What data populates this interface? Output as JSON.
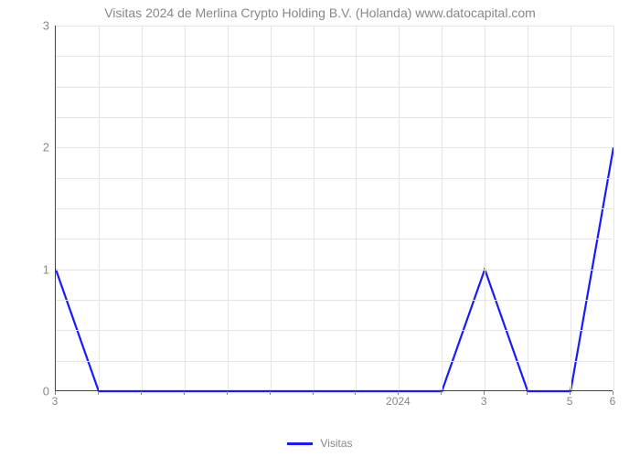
{
  "chart": {
    "type": "line",
    "title": "Visitas 2024 de Merlina Crypto Holding B.V. (Holanda) www.datocapital.com",
    "title_fontsize": 14,
    "title_color": "#888888",
    "background_color": "#ffffff",
    "grid_color": "#e5e5e5",
    "axis_color": "#444444",
    "tick_label_color": "#888888",
    "tick_label_fontsize": 13,
    "line_color": "#1a1aff",
    "line_width": 2.2,
    "ylim": [
      0,
      3
    ],
    "ytick_step": 1,
    "yticks": [
      0,
      1,
      2,
      3
    ],
    "x_count": 14,
    "x_major_every": 1,
    "hgrid_subdiv": 4,
    "xtick_labels": {
      "0": "3",
      "8": "2024",
      "10": "3",
      "12": "5",
      "13": "6"
    },
    "series": {
      "name": "Visitas",
      "values": [
        1,
        0,
        0,
        0,
        0,
        0,
        0,
        0,
        0,
        0,
        1,
        0,
        0,
        2
      ]
    },
    "legend": {
      "label": "Visitas",
      "swatch_color": "#1a1aff",
      "text_color": "#888888"
    }
  }
}
